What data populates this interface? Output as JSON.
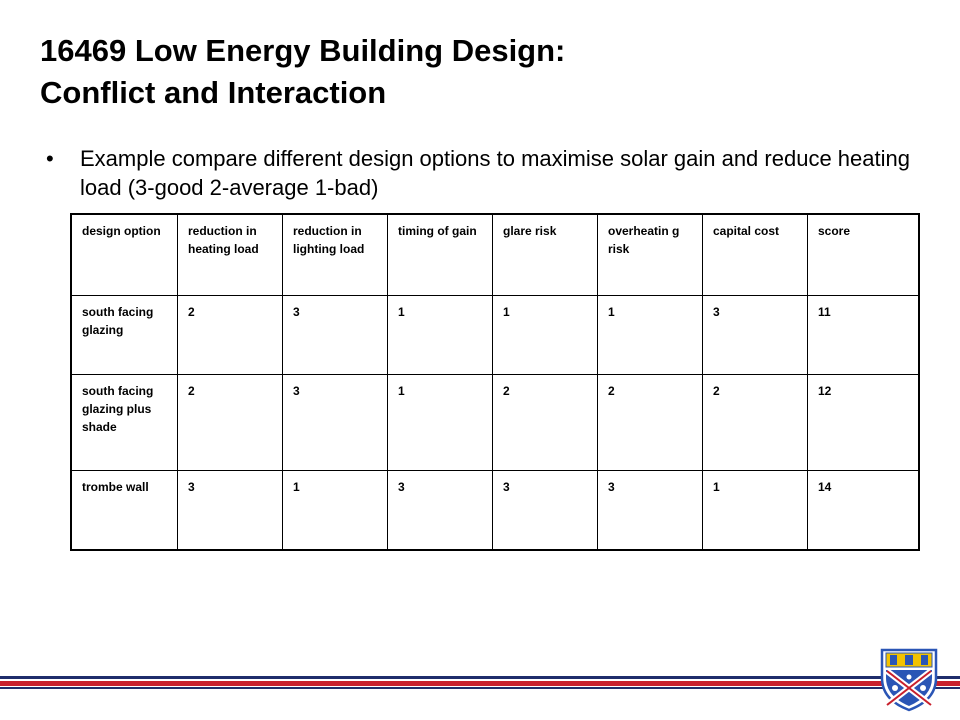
{
  "slide": {
    "title_line1": "16469 Low Energy Building Design:",
    "title_line2": "Conflict and Interaction",
    "bullet": "Example compare different design options to maximise solar gain and reduce heating load (3-good 2-average 1-bad)"
  },
  "table": {
    "headers": [
      "design option",
      "reduction in heating load",
      "reduction in lighting load",
      "timing of gain",
      "glare risk",
      "overheatin g risk",
      "capital cost",
      "score"
    ],
    "rows": [
      [
        "south facing glazing",
        "2",
        "3",
        "1",
        "1",
        "1",
        "3",
        "11"
      ],
      [
        "south facing glazing plus shade",
        "2",
        "3",
        "1",
        "2",
        "2",
        "2",
        "12"
      ],
      [
        "trombe wall",
        "3",
        "1",
        "3",
        "3",
        "3",
        "1",
        "14"
      ]
    ]
  },
  "colors": {
    "navy": "#1f2d6b",
    "red": "#c8202c",
    "crest_blue": "#2a55b5",
    "crest_yellow": "#f2c200"
  },
  "icons": {
    "logo": "university-crest-logo"
  }
}
